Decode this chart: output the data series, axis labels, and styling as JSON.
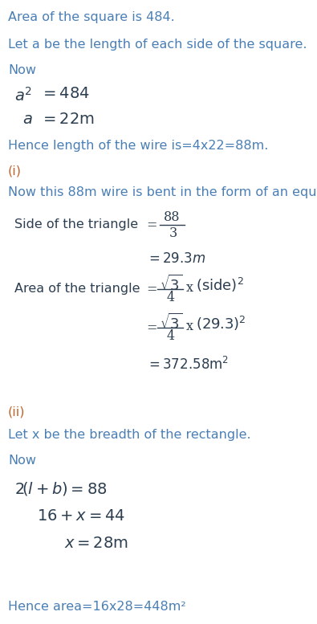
{
  "bg_color": "#ffffff",
  "blue": "#4a7fb5",
  "dark": "#2c3e50",
  "orange": "#c0632a",
  "fig_width": 3.95,
  "fig_height": 7.77,
  "dpi": 100
}
